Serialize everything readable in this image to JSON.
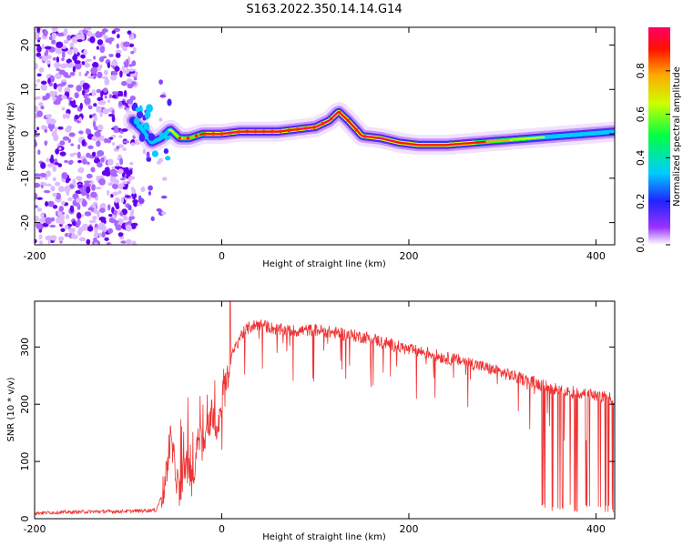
{
  "title": "S163.2022.350.14.14.G14",
  "colors": {
    "snr_line": "#ee3333",
    "axis": "#000000"
  },
  "chart_data": [
    {
      "type": "heatmap",
      "xlabel": "Height of straight line (km)",
      "ylabel": "Frequency (Hz)",
      "xlim": [
        -200,
        420
      ],
      "ylim": [
        -25,
        24
      ],
      "xticks": [
        -200,
        0,
        200,
        400
      ],
      "yticks": [
        -20,
        -10,
        0,
        10,
        20
      ],
      "colorbar": {
        "label": "Normalized spectral amplitude",
        "range": [
          0.0,
          1.0
        ],
        "ticks": [
          0.0,
          0.2,
          0.4,
          0.6,
          0.8
        ]
      },
      "noise_region_x": [
        -200,
        -100
      ],
      "ridge": {
        "x": [
          -95,
          -85,
          -75,
          -65,
          -55,
          -45,
          -35,
          -20,
          0,
          20,
          40,
          60,
          80,
          100,
          115,
          125,
          135,
          150,
          170,
          190,
          210,
          240,
          270,
          300,
          330,
          360,
          390,
          420
        ],
        "freq": [
          3,
          1,
          -2,
          -1,
          1,
          -1,
          -1,
          0,
          0,
          0.5,
          0.5,
          0.5,
          1,
          1.5,
          3,
          5,
          3,
          -0.5,
          -1,
          -2,
          -2.5,
          -2.5,
          -2,
          -1.5,
          -1,
          -0.5,
          0,
          0.5
        ],
        "amplitude": [
          0.3,
          0.35,
          0.35,
          0.4,
          0.5,
          0.6,
          0.7,
          0.8,
          0.95,
          0.95,
          0.95,
          0.9,
          0.9,
          0.95,
          0.95,
          0.9,
          0.85,
          0.9,
          0.95,
          0.9,
          0.9,
          0.85,
          0.85,
          0.7,
          0.55,
          0.45,
          0.4,
          0.35
        ]
      }
    },
    {
      "type": "line",
      "xlabel": "Height of straight line (km)",
      "ylabel": "SNR (10 * v/v)",
      "xlim": [
        -200,
        420
      ],
      "ylim": [
        0,
        380
      ],
      "xticks": [
        -200,
        0,
        200,
        400
      ],
      "yticks": [
        0,
        100,
        200,
        300
      ],
      "series": [
        {
          "name": "SNR",
          "x": [
            -200,
            -150,
            -100,
            -70,
            -60,
            -55,
            -45,
            -40,
            -30,
            -25,
            -20,
            -10,
            -5,
            0,
            10,
            20,
            30,
            40,
            50,
            60,
            80,
            100,
            120,
            140,
            160,
            180,
            200,
            220,
            240,
            260,
            280,
            300,
            320,
            340,
            360,
            380,
            400,
            420
          ],
          "values": [
            10,
            12,
            13,
            15,
            60,
            140,
            40,
            100,
            60,
            160,
            120,
            190,
            160,
            200,
            280,
            320,
            335,
            340,
            335,
            330,
            328,
            330,
            325,
            320,
            315,
            305,
            295,
            290,
            280,
            275,
            265,
            255,
            245,
            235,
            225,
            220,
            215,
            210
          ]
        }
      ],
      "dropout_region_x": [
        340,
        420
      ]
    }
  ]
}
